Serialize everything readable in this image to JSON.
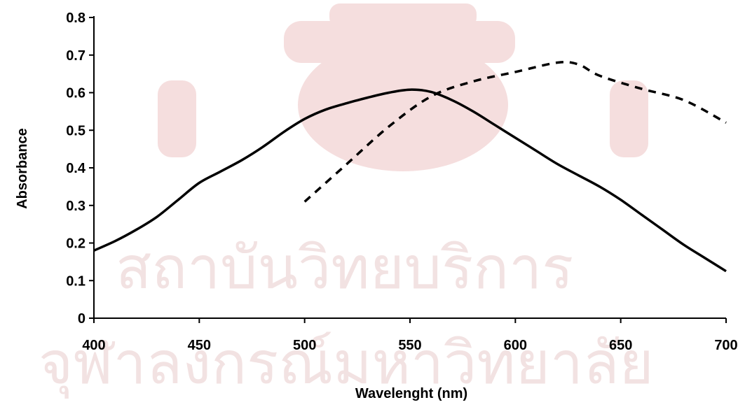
{
  "watermark": {
    "line1": "สถาบันวิทยบริการ",
    "line2": "จุฬาลงกรณ์มหาวิทยาลัย",
    "color": "#f2e2e2",
    "seal_color": "#f5dede"
  },
  "chart_data": {
    "type": "line",
    "xlabel": "Wavelenght (nm)",
    "ylabel": "Absorbance",
    "xlim": [
      400,
      700
    ],
    "ylim": [
      0,
      0.8
    ],
    "x_ticks": [
      400,
      450,
      500,
      550,
      600,
      650,
      700
    ],
    "y_ticks": [
      0,
      0.1,
      0.2,
      0.3,
      0.4,
      0.5,
      0.6,
      0.7,
      0.8
    ],
    "x_tick_labels": [
      "400",
      "450",
      "500",
      "550",
      "600",
      "650",
      "700"
    ],
    "y_tick_labels": [
      "0",
      "0.1",
      "0.2",
      "0.3",
      "0.4",
      "0.5",
      "0.6",
      "0.7",
      "0.8"
    ],
    "grid": false,
    "legend": "none",
    "series": [
      {
        "style": "solid",
        "color": "#000000",
        "x": [
          400,
          410,
          420,
          430,
          440,
          450,
          460,
          470,
          480,
          490,
          500,
          510,
          520,
          530,
          540,
          550,
          560,
          570,
          580,
          590,
          600,
          610,
          620,
          630,
          640,
          650,
          660,
          670,
          680,
          690,
          700
        ],
        "y": [
          0.18,
          0.205,
          0.235,
          0.27,
          0.315,
          0.36,
          0.39,
          0.42,
          0.455,
          0.495,
          0.53,
          0.555,
          0.572,
          0.587,
          0.6,
          0.608,
          0.602,
          0.58,
          0.55,
          0.515,
          0.48,
          0.445,
          0.41,
          0.38,
          0.35,
          0.315,
          0.275,
          0.235,
          0.195,
          0.16,
          0.125
        ]
      },
      {
        "style": "dashed",
        "color": "#000000",
        "x": [
          500,
          520,
          540,
          560,
          580,
          600,
          620,
          630,
          640,
          660,
          680,
          700
        ],
        "y": [
          0.31,
          0.41,
          0.51,
          0.59,
          0.63,
          0.655,
          0.68,
          0.675,
          0.645,
          0.61,
          0.58,
          0.52
        ]
      }
    ]
  }
}
